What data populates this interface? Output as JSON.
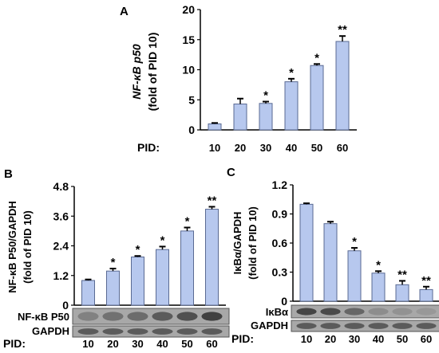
{
  "bar_fill": "#b7c8ee",
  "bar_stroke": "#5a6a93",
  "blot_dark": "#3a3a3a",
  "blot_light": "#a8a8a8",
  "chart_data": [
    {
      "panel": "A",
      "type": "bar",
      "categories": [
        "10",
        "20",
        "30",
        "40",
        "50",
        "60"
      ],
      "values": [
        1.0,
        4.3,
        4.4,
        8.0,
        10.7,
        14.7
      ],
      "errors": [
        0.15,
        0.9,
        0.3,
        0.5,
        0.25,
        0.9
      ],
      "significance": [
        "",
        "",
        "*",
        "*",
        "*",
        "**"
      ],
      "ylabel_lines": [
        "NF-κB p50",
        "(fold of PID 10)"
      ],
      "xlabel": "PID:",
      "ylim": [
        0,
        20
      ],
      "yticks": [
        "0",
        "5",
        "10",
        "15",
        "20"
      ],
      "blots": []
    },
    {
      "panel": "B",
      "type": "bar",
      "categories": [
        "10",
        "20",
        "30",
        "40",
        "50",
        "60"
      ],
      "values": [
        1.0,
        1.38,
        1.95,
        2.25,
        3.0,
        3.88
      ],
      "errors": [
        0.04,
        0.1,
        0.04,
        0.12,
        0.14,
        0.1
      ],
      "significance": [
        "",
        "*",
        "*",
        "*",
        "*",
        "**"
      ],
      "ylabel_lines": [
        "NF-κB P50/GAPDH",
        "(fold of PID 10)"
      ],
      "xlabel": "PID:",
      "ylim": [
        0,
        4.8
      ],
      "yticks": [
        "0",
        "1.2",
        "2.4",
        "3.6",
        "4.8"
      ],
      "blots": [
        {
          "label": "NF-κB P50",
          "intensity": [
            0.35,
            0.5,
            0.55,
            0.7,
            0.8,
            0.95
          ]
        },
        {
          "label": "GAPDH",
          "intensity": [
            0.7,
            0.7,
            0.7,
            0.7,
            0.7,
            0.7
          ]
        }
      ]
    },
    {
      "panel": "C",
      "type": "bar",
      "categories": [
        "10",
        "20",
        "30",
        "40",
        "50",
        "60"
      ],
      "values": [
        1.0,
        0.8,
        0.52,
        0.29,
        0.17,
        0.12
      ],
      "errors": [
        0.01,
        0.02,
        0.03,
        0.02,
        0.04,
        0.03
      ],
      "significance": [
        "",
        "",
        "*",
        "*",
        "**",
        "**"
      ],
      "ylabel_lines": [
        "IκBα/GAPDH",
        "(fold of PID 10)"
      ],
      "xlabel": "PID:",
      "ylim": [
        0,
        1.2
      ],
      "yticks": [
        "0",
        "0.3",
        "0.6",
        "0.9",
        "1.2"
      ],
      "blots": [
        {
          "label": "IκBα",
          "intensity": [
            0.9,
            0.85,
            0.6,
            0.25,
            0.2,
            0.15
          ]
        },
        {
          "label": "GAPDH",
          "intensity": [
            0.7,
            0.7,
            0.7,
            0.7,
            0.7,
            0.7
          ]
        }
      ]
    }
  ]
}
